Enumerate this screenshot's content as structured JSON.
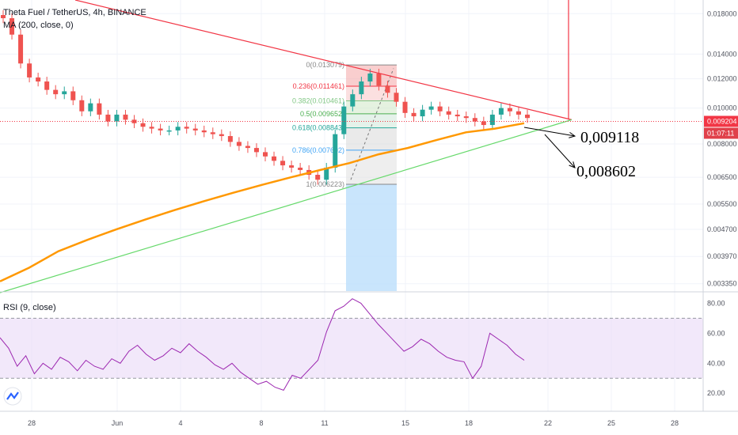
{
  "header": {
    "symbol_line": "Theta Fuel / TetherUS, 4h, BINANCE",
    "ma_label": "MA (200, close, 0)",
    "rsi_label": "RSI (9, close)"
  },
  "colors": {
    "bull": "#26a69a",
    "bear": "#ef5350",
    "ma": "#ff9800",
    "resistance": "#f23645",
    "support": "#4caf50",
    "rsi_line": "#9c27b0",
    "rsi_band": "#ead9f7",
    "price_tag": "#f23645",
    "timer_tag": "#e0404a",
    "fib_range": "#bbdefb"
  },
  "chart_data": [
    {
      "type": "candlestick",
      "title": "Theta Fuel / TetherUS, 4h, BINANCE",
      "y_scale": "log",
      "y_ticks": [
        "0.018000",
        "0.014000",
        "0.012000",
        "0.010000",
        "0.008000",
        "0.006500",
        "0.005500",
        "0.004700",
        "0.003970",
        "0.003350"
      ],
      "x_ticks": [
        "28",
        "Jun",
        "4",
        "8",
        "11",
        "15",
        "18",
        "22",
        "25",
        "28"
      ],
      "current_price": "0.009204",
      "countdown": "01:07:11",
      "ohlc_path": [
        0.0175,
        0.0158,
        0.0132,
        0.0121,
        0.0118,
        0.0112,
        0.0109,
        0.0111,
        0.0105,
        0.0098,
        0.0103,
        0.0096,
        0.0092,
        0.0096,
        0.0093,
        0.0091,
        0.0089,
        0.0088,
        0.0087,
        0.0087,
        0.0089,
        0.0088,
        0.0087,
        0.0086,
        0.0085,
        0.0084,
        0.0081,
        0.0079,
        0.0078,
        0.0076,
        0.0074,
        0.0072,
        0.007,
        0.0069,
        0.0068,
        0.0066,
        0.0064,
        0.0069,
        0.0085,
        0.0101,
        0.0109,
        0.0118,
        0.0124,
        0.0115,
        0.011,
        0.0104,
        0.0097,
        0.0095,
        0.0099,
        0.0101,
        0.0098,
        0.0096,
        0.0095,
        0.0094,
        0.0092,
        0.009,
        0.0096,
        0.01,
        0.0098,
        0.0096,
        0.0094
      ],
      "ma200_path": [
        0.0034,
        0.0037,
        0.0041,
        0.0044,
        0.0047,
        0.005,
        0.0053,
        0.0056,
        0.0059,
        0.0062,
        0.0065,
        0.0068,
        0.0071,
        0.0075,
        0.0078,
        0.0082,
        0.0086,
        0.0088,
        0.0091
      ],
      "fibonacci": [
        {
          "ratio": "0",
          "price": "0.013079"
        },
        {
          "ratio": "0.236",
          "price": "0.011461"
        },
        {
          "ratio": "0.382",
          "price": "0.010461"
        },
        {
          "ratio": "0.5",
          "price": "0.009652"
        },
        {
          "ratio": "0.618",
          "price": "0.008843"
        },
        {
          "ratio": "0.786",
          "price": "0.007692"
        },
        {
          "ratio": "1",
          "price": "0.006223"
        }
      ],
      "annotations": [
        "0,009118",
        "0,008602"
      ]
    },
    {
      "type": "line",
      "title": "RSI (9, close)",
      "y_ticks": [
        "80.00",
        "60.00",
        "40.00",
        "20.00"
      ],
      "band": [
        30,
        70
      ],
      "values": [
        57,
        50,
        38,
        45,
        33,
        40,
        36,
        44,
        41,
        35,
        42,
        38,
        36,
        43,
        40,
        48,
        52,
        46,
        42,
        45,
        50,
        47,
        53,
        48,
        44,
        39,
        36,
        40,
        34,
        30,
        26,
        28,
        24,
        22,
        32,
        30,
        36,
        42,
        61,
        75,
        78,
        83,
        80,
        73,
        66,
        60,
        54,
        48,
        51,
        56,
        53,
        48,
        44,
        42,
        41,
        30,
        38,
        60,
        56,
        52,
        46,
        42
      ]
    }
  ]
}
